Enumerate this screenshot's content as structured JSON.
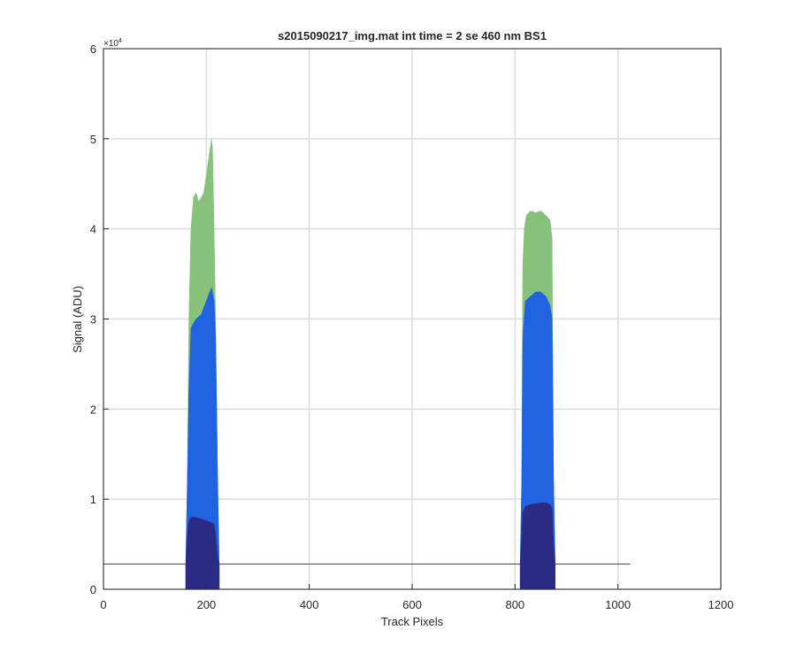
{
  "chart_data": {
    "type": "area",
    "title": "s2015090217_img.mat int time = 2 se  460 nm BS1",
    "xlabel": "Track Pixels",
    "ylabel": "Signal (ADU)",
    "y_exponent_label": "×10",
    "y_exponent_power": "4",
    "xlim": [
      0,
      1200
    ],
    "ylim": [
      0,
      60000
    ],
    "xticks": [
      0,
      200,
      400,
      600,
      800,
      1000,
      1200
    ],
    "yticks": [
      0,
      10000,
      20000,
      30000,
      40000,
      50000,
      60000
    ],
    "xtick_labels": [
      "0",
      "200",
      "400",
      "600",
      "800",
      "1000",
      "1200"
    ],
    "ytick_labels": [
      "0",
      "1",
      "2",
      "3",
      "4",
      "5",
      "6"
    ],
    "grid": true,
    "baseline": {
      "value": 2800,
      "x_start": 0,
      "x_end": 1024,
      "color": "#3b3b9c"
    },
    "series": [
      {
        "color": "#86c27a",
        "x": [
          160,
          163,
          166,
          170,
          175,
          180,
          185,
          190,
          195,
          200,
          205,
          210,
          212,
          215,
          218,
          222,
          225
        ],
        "values": [
          2800,
          12000,
          30000,
          40000,
          43500,
          44000,
          43000,
          43500,
          44000,
          46000,
          48000,
          50000,
          49000,
          40000,
          30000,
          12000,
          2800
        ]
      },
      {
        "color": "#86c27a",
        "x": [
          810,
          813,
          815,
          818,
          822,
          830,
          840,
          850,
          860,
          868,
          872,
          875,
          878
        ],
        "values": [
          2800,
          12000,
          36000,
          40000,
          41500,
          42000,
          41800,
          42000,
          41500,
          41000,
          39000,
          12000,
          2800
        ]
      },
      {
        "color": "#1f63e0",
        "x": [
          160,
          163,
          166,
          170,
          180,
          190,
          200,
          210,
          215,
          218,
          222,
          225
        ],
        "values": [
          2800,
          12000,
          22000,
          29000,
          30000,
          30500,
          32000,
          33500,
          32000,
          28000,
          12000,
          2800
        ]
      },
      {
        "color": "#1f63e0",
        "x": [
          810,
          813,
          815,
          820,
          830,
          840,
          850,
          860,
          868,
          872,
          875,
          878
        ],
        "values": [
          2800,
          12000,
          28000,
          32000,
          32500,
          33000,
          33000,
          32500,
          31500,
          30000,
          12000,
          2800
        ]
      },
      {
        "color": "#2b2a85",
        "x": [
          160,
          163,
          166,
          170,
          180,
          190,
          200,
          210,
          215,
          218,
          222,
          225
        ],
        "values": [
          2800,
          6000,
          7500,
          8000,
          8000,
          7800,
          7600,
          7400,
          7200,
          6000,
          3500,
          2800
        ]
      },
      {
        "color": "#2b2a85",
        "x": [
          810,
          813,
          815,
          820,
          830,
          840,
          850,
          860,
          868,
          872,
          875,
          878
        ],
        "values": [
          2800,
          6000,
          8500,
          9200,
          9400,
          9500,
          9600,
          9600,
          9400,
          9000,
          5000,
          2800
        ]
      }
    ]
  }
}
